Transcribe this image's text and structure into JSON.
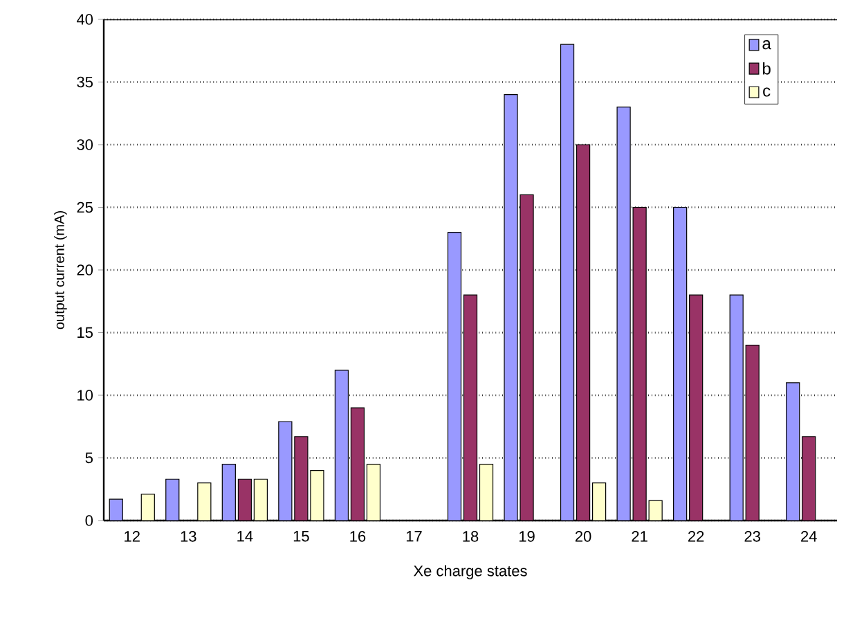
{
  "chart_data": {
    "type": "bar",
    "xlabel": "Xe charge states",
    "ylabel": "output current (mA)",
    "categories": [
      "12",
      "13",
      "14",
      "15",
      "16",
      "17",
      "18",
      "19",
      "20",
      "21",
      "22",
      "23",
      "24"
    ],
    "series": [
      {
        "name": "a",
        "color": "#9999ff",
        "values": [
          1.7,
          3.3,
          4.5,
          7.9,
          12,
          null,
          23,
          34,
          38,
          33,
          25,
          18,
          11
        ]
      },
      {
        "name": "b",
        "color": "#993366",
        "values": [
          null,
          null,
          3.3,
          6.7,
          9,
          null,
          18,
          26,
          30,
          25,
          18,
          14,
          6.7
        ]
      },
      {
        "name": "c",
        "color": "#ffffcc",
        "values": [
          2.1,
          3,
          3.3,
          4,
          4.5,
          null,
          4.5,
          null,
          3,
          1.6,
          null,
          null,
          null
        ]
      }
    ],
    "ylim": [
      0,
      40
    ],
    "yticks": [
      0,
      5,
      10,
      15,
      20,
      25,
      30,
      35,
      40
    ],
    "grid": "y",
    "legend": "top right"
  }
}
